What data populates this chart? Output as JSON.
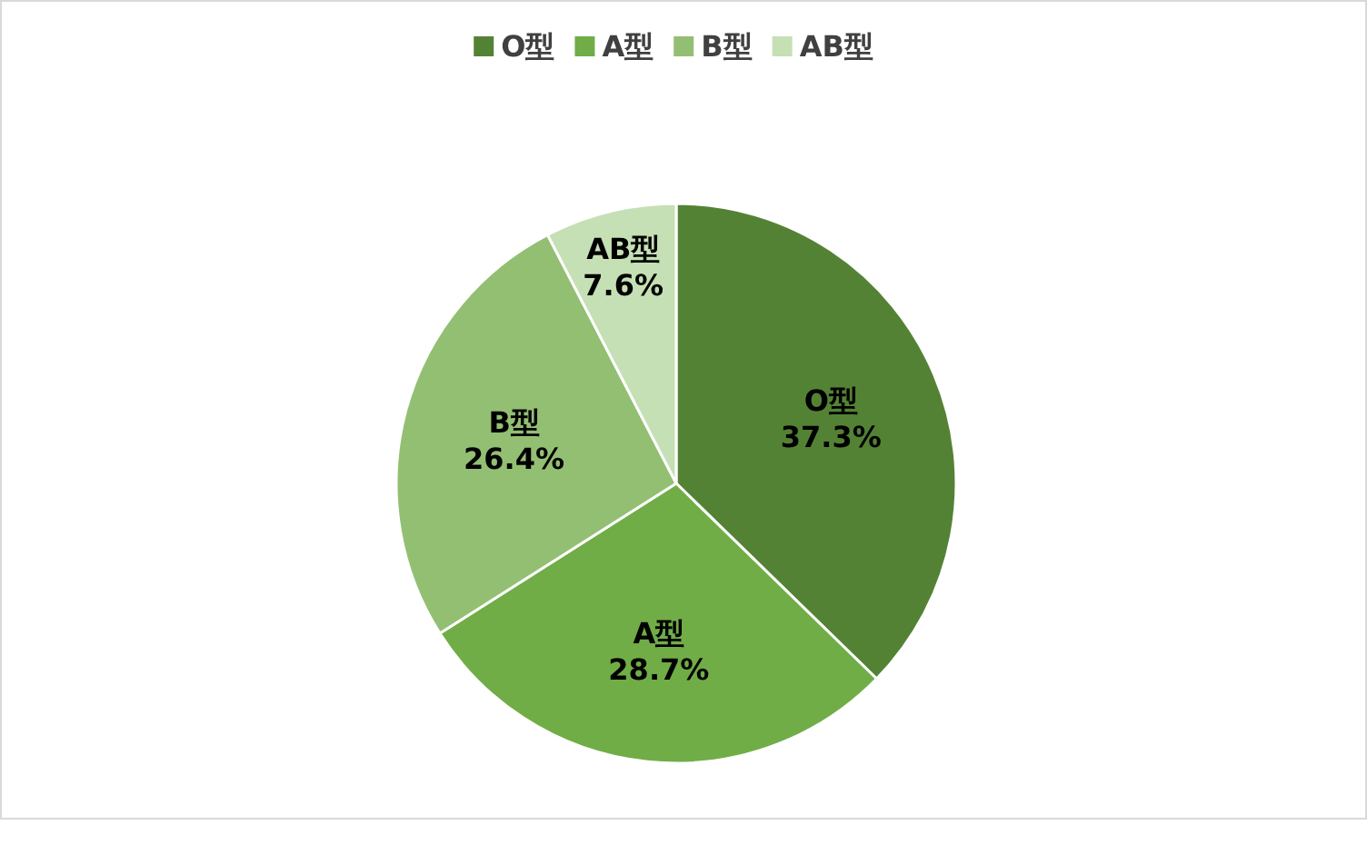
{
  "chart_data": {
    "type": "pie",
    "categories": [
      "O型",
      "A型",
      "B型",
      "AB型"
    ],
    "values": [
      37.3,
      28.7,
      26.4,
      7.6
    ],
    "colors": [
      "#548235",
      "#70ad47",
      "#93bf73",
      "#c5e0b4"
    ],
    "value_labels": [
      "37.3%",
      "28.7%",
      "26.4%",
      "7.6%"
    ],
    "legend": "top"
  }
}
